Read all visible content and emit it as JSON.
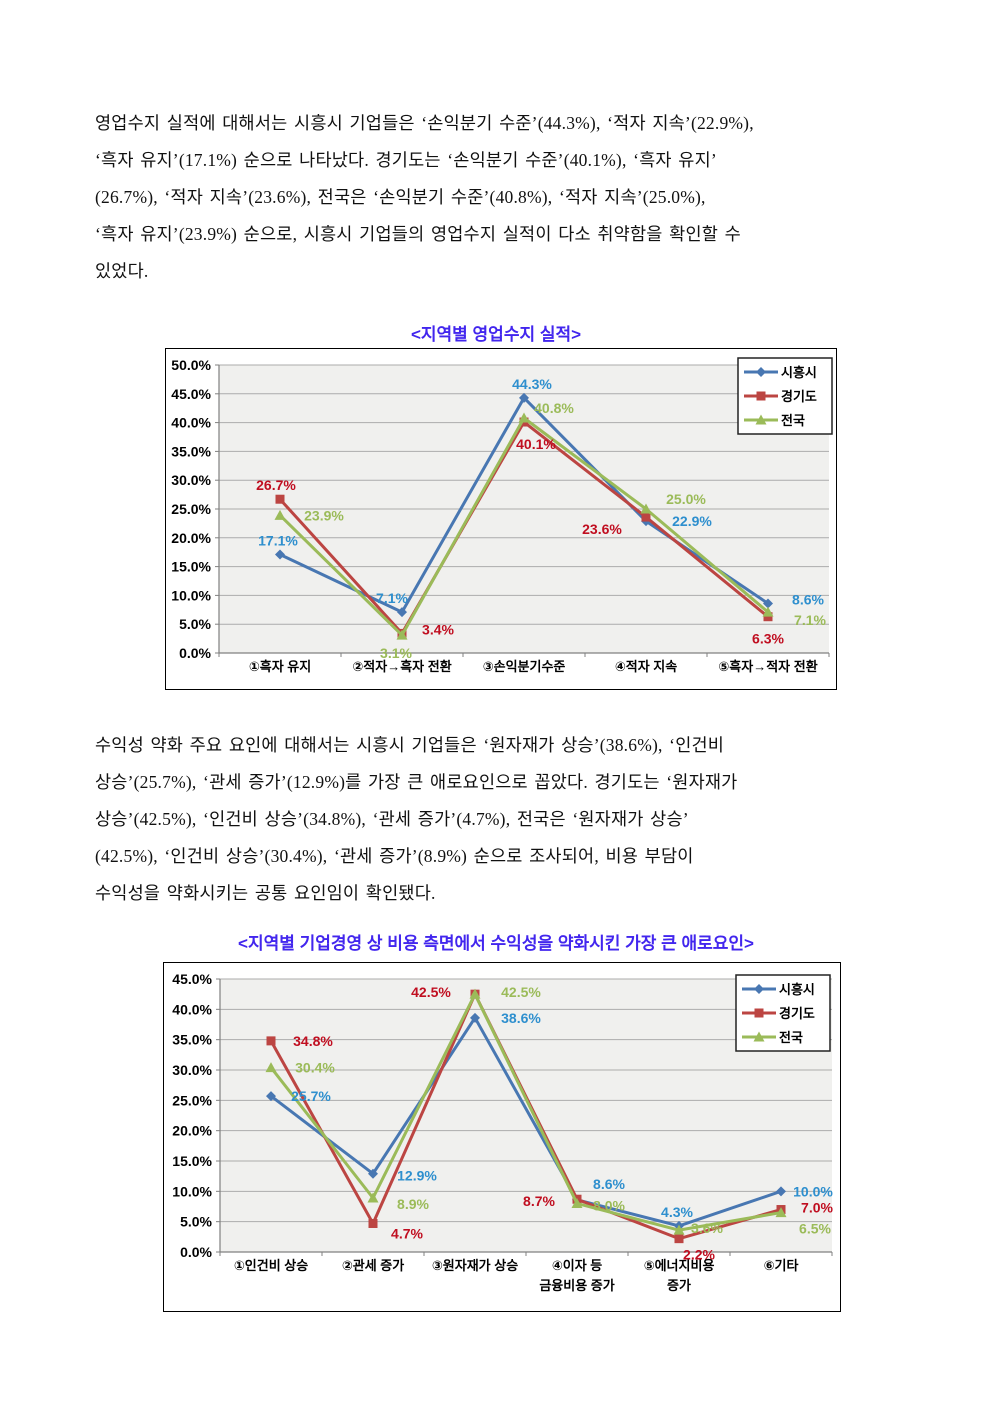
{
  "paragraphs": [
    {
      "lines": [
        "영업수지 실적에 대해서는 시흥시 기업들은 ‘손익분기 수준’(44.3%), ‘적자 지속’(22.9%),",
        "‘흑자 유지’(17.1%) 순으로 나타났다. 경기도는 ‘손익분기 수준’(40.1%), ‘흑자 유지’",
        "(26.7%), ‘적자 지속’(23.6%), 전국은 ‘손익분기 수준’(40.8%), ‘적자 지속’(25.0%),",
        "‘흑자 유지’(23.9%) 순으로, 시흥시 기업들의 영업수지 실적이 다소 취약함을 확인할 수",
        "있었다."
      ]
    },
    {
      "lines": [
        "수익성 약화 주요 요인에 대해서는 시흥시 기업들은 ‘원자재가 상승’(38.6%), ‘인건비",
        "상승’(25.7%), ‘관세 증가’(12.9%)를 가장 큰 애로요인으로 꼽았다. 경기도는 ‘원자재가",
        "상승’(42.5%), ‘인건비 상승’(34.8%), ‘관세 증가’(4.7%), 전국은 ‘원자재가 상승’",
        "(42.5%), ‘인건비 상승’(30.4%), ‘관세 증가’(8.9%) 순으로 조사되어, 비용 부담이",
        "수익성을 약화시키는 공통 요인임이 확인됐다."
      ]
    }
  ],
  "chart_data": [
    {
      "type": "line",
      "title": "<지역별 영업수지 실적>",
      "categories": [
        "①흑자 유지",
        "②적자→흑자 전환",
        "③손익분기수준",
        "④적자 지속",
        "⑤흑자→적자 전환"
      ],
      "ylim": [
        0,
        50
      ],
      "ytick_step": 5,
      "grid": true,
      "legend_position": "top-right",
      "value_suffix": "%",
      "plot_bg": "#F0F0EE",
      "series": [
        {
          "name": "시흥시",
          "marker": "diamond",
          "color": "#4877B2",
          "label_color": "#2E8FCE",
          "values": [
            17.1,
            7.1,
            44.3,
            22.9,
            8.6
          ],
          "label_offsets": [
            [
              -2,
              -14
            ],
            [
              -10,
              -14
            ],
            [
              8,
              -14
            ],
            [
              46,
              0
            ],
            [
              40,
              -4
            ]
          ]
        },
        {
          "name": "경기도",
          "marker": "square",
          "color": "#BC4542",
          "label_color": "#C00E20",
          "values": [
            26.7,
            3.4,
            40.1,
            23.6,
            6.3
          ],
          "label_offsets": [
            [
              -4,
              -14
            ],
            [
              36,
              -4
            ],
            [
              12,
              22
            ],
            [
              -44,
              12
            ],
            [
              0,
              22
            ]
          ]
        },
        {
          "name": "전국",
          "marker": "triangle",
          "color": "#9BBB59",
          "label_color": "#9BBB59",
          "values": [
            23.9,
            3.1,
            40.8,
            25.0,
            7.1
          ],
          "label_offsets": [
            [
              44,
              0
            ],
            [
              -6,
              18
            ],
            [
              30,
              -10
            ],
            [
              40,
              -10
            ],
            [
              42,
              8
            ]
          ]
        }
      ]
    },
    {
      "type": "line",
      "title": "<지역별 기업경영 상 비용 측면에서 수익성을 약화시킨 가장 큰 애로요인>",
      "categories": [
        "①인건비 상승",
        "②관세 증가",
        "③원자재가 상승",
        "④이자 등\n금융비용 증가",
        "⑤에너지비용\n증가",
        "⑥기타"
      ],
      "ylim": [
        0,
        45
      ],
      "ytick_step": 5,
      "grid": true,
      "legend_position": "top-right",
      "value_suffix": "%",
      "plot_bg": "#F0F0EE",
      "series": [
        {
          "name": "시흥시",
          "marker": "diamond",
          "color": "#4877B2",
          "label_color": "#2E8FCE",
          "values": [
            25.7,
            12.9,
            38.6,
            8.6,
            4.3,
            10.0
          ],
          "label_offsets": [
            [
              40,
              0
            ],
            [
              44,
              2
            ],
            [
              46,
              0
            ],
            [
              32,
              -16
            ],
            [
              -2,
              -14
            ],
            [
              32,
              0
            ]
          ]
        },
        {
          "name": "경기도",
          "marker": "square",
          "color": "#BC4542",
          "label_color": "#C00E20",
          "values": [
            34.8,
            4.7,
            42.5,
            8.7,
            2.2,
            7.0
          ],
          "label_offsets": [
            [
              42,
              0
            ],
            [
              34,
              10
            ],
            [
              -44,
              -2
            ],
            [
              -38,
              2
            ],
            [
              20,
              16
            ],
            [
              36,
              -2
            ]
          ]
        },
        {
          "name": "전국",
          "marker": "triangle",
          "color": "#9BBB59",
          "label_color": "#9BBB59",
          "values": [
            30.4,
            8.9,
            42.5,
            8.0,
            3.6,
            6.5
          ],
          "label_offsets": [
            [
              44,
              0
            ],
            [
              40,
              6
            ],
            [
              46,
              -2
            ],
            [
              32,
              2
            ],
            [
              28,
              -2
            ],
            [
              34,
              16
            ]
          ]
        }
      ]
    }
  ]
}
